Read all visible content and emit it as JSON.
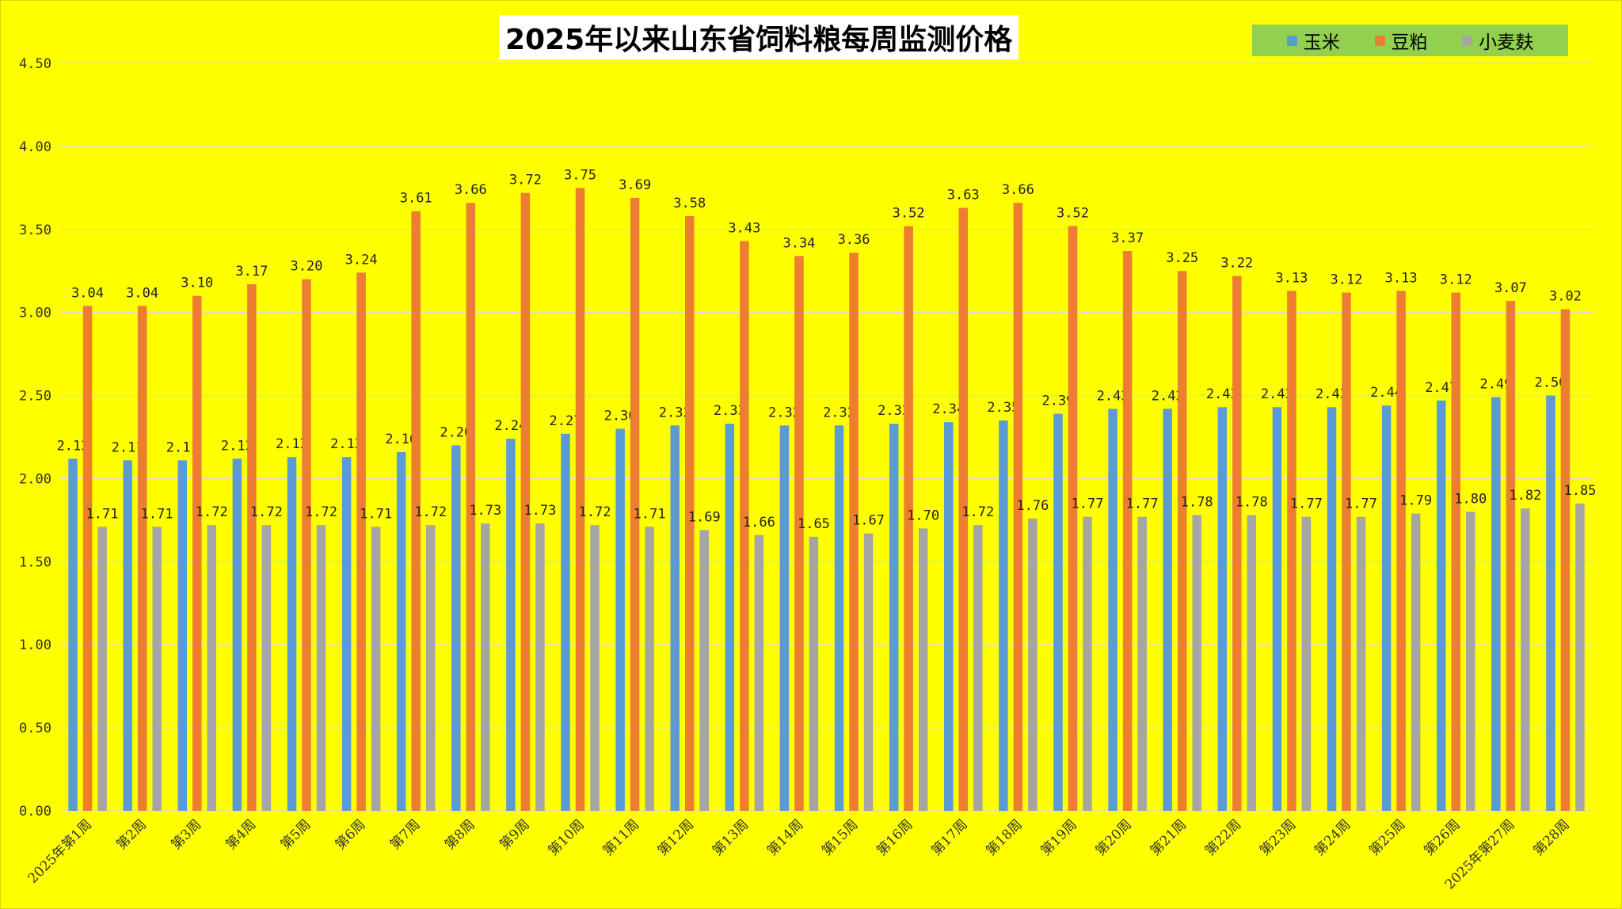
{
  "chart_data": {
    "type": "bar",
    "title": "2025年以来山东省饲料粮每周监测价格",
    "ylim": [
      0,
      4.5
    ],
    "y_ticks": [
      "0.00",
      "0.50",
      "1.00",
      "1.50",
      "2.00",
      "2.50",
      "3.00",
      "3.50",
      "4.00",
      "4.50"
    ],
    "grid": true,
    "legend_position": "top-right",
    "background_color": "#ffff00",
    "legend_background": "#92d050",
    "categories": [
      "2025年第1周",
      "第2周",
      "第3周",
      "第4周",
      "第5周",
      "第6周",
      "第7周",
      "第8周",
      "第9周",
      "第10周",
      "第11周",
      "第12周",
      "第13周",
      "第14周",
      "第15周",
      "第16周",
      "第17周",
      "第18周",
      "第19周",
      "第20周",
      "第21周",
      "第22周",
      "第23周",
      "第24周",
      "第25周",
      "第26周",
      "2025年第27周",
      "第28周"
    ],
    "series": [
      {
        "name": "玉米",
        "color": "#5b9bd5",
        "values": [
          2.12,
          2.11,
          2.11,
          2.12,
          2.13,
          2.13,
          2.16,
          2.2,
          2.24,
          2.27,
          2.3,
          2.32,
          2.33,
          2.32,
          2.32,
          2.33,
          2.34,
          2.35,
          2.39,
          2.42,
          2.42,
          2.43,
          2.43,
          2.43,
          2.44,
          2.47,
          2.49,
          2.5
        ]
      },
      {
        "name": "豆粕",
        "color": "#ed7d31",
        "values": [
          3.04,
          3.04,
          3.1,
          3.17,
          3.2,
          3.24,
          3.61,
          3.66,
          3.72,
          3.75,
          3.69,
          3.58,
          3.43,
          3.34,
          3.36,
          3.52,
          3.63,
          3.66,
          3.52,
          3.37,
          3.25,
          3.22,
          3.13,
          3.12,
          3.13,
          3.12,
          3.07,
          3.02
        ]
      },
      {
        "name": "小麦麸",
        "color": "#a5a5a5",
        "values": [
          1.71,
          1.71,
          1.72,
          1.72,
          1.72,
          1.71,
          1.72,
          1.73,
          1.73,
          1.72,
          1.71,
          1.69,
          1.66,
          1.65,
          1.67,
          1.7,
          1.72,
          1.76,
          1.77,
          1.77,
          1.78,
          1.78,
          1.77,
          1.77,
          1.79,
          1.8,
          1.82,
          1.85
        ]
      }
    ]
  }
}
